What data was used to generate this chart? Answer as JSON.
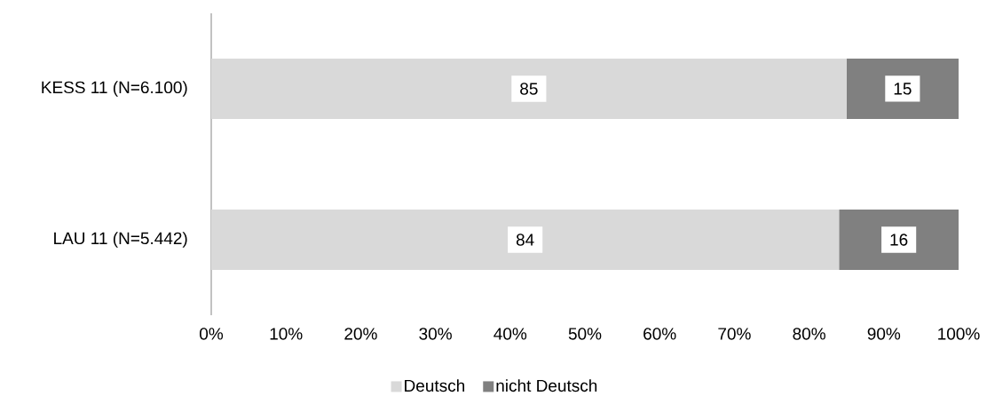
{
  "chart_data": {
    "type": "bar",
    "orientation": "horizontal",
    "stacked": true,
    "categories": [
      "KESS 11 (N=6.100)",
      "LAU 11 (N=5.442)"
    ],
    "series": [
      {
        "name": "Deutsch",
        "color": "#d9d9d9",
        "values": [
          85,
          84
        ]
      },
      {
        "name": "nicht Deutsch",
        "color": "#808080",
        "values": [
          15,
          16
        ]
      }
    ],
    "xlim": [
      0,
      100
    ],
    "xticks": [
      {
        "value": 0,
        "label": "0%"
      },
      {
        "value": 10,
        "label": "10%"
      },
      {
        "value": 20,
        "label": "20%"
      },
      {
        "value": 30,
        "label": "30%"
      },
      {
        "value": 40,
        "label": "40%"
      },
      {
        "value": 50,
        "label": "50%"
      },
      {
        "value": 60,
        "label": "60%"
      },
      {
        "value": 70,
        "label": "70%"
      },
      {
        "value": 80,
        "label": "80%"
      },
      {
        "value": 90,
        "label": "90%"
      },
      {
        "value": 100,
        "label": "100%"
      }
    ],
    "data_labels": true,
    "legend": "bottom"
  }
}
